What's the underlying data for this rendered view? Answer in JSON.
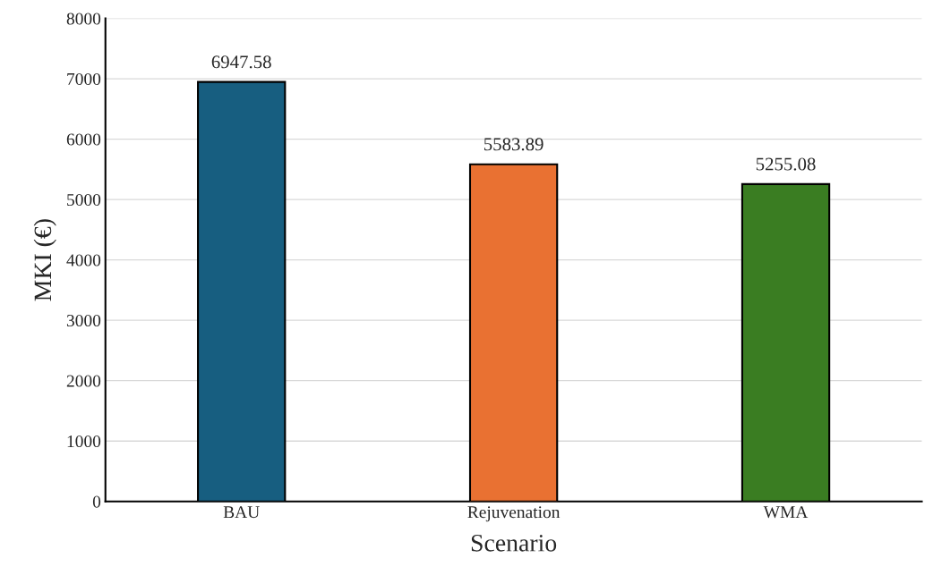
{
  "chart_data": {
    "type": "bar",
    "xlabel": "Scenario",
    "ylabel": "MKI (€)",
    "categories": [
      "BAU",
      "Rejuvenation",
      "WMA"
    ],
    "values": [
      6947.58,
      5583.89,
      5255.08
    ],
    "colors": [
      "#175e80",
      "#e97132",
      "#3a7d22"
    ],
    "ylim": [
      0,
      8000
    ],
    "yticks": [
      0,
      1000,
      2000,
      3000,
      4000,
      5000,
      6000,
      7000,
      8000
    ],
    "grid": "y",
    "data_labels": true
  }
}
